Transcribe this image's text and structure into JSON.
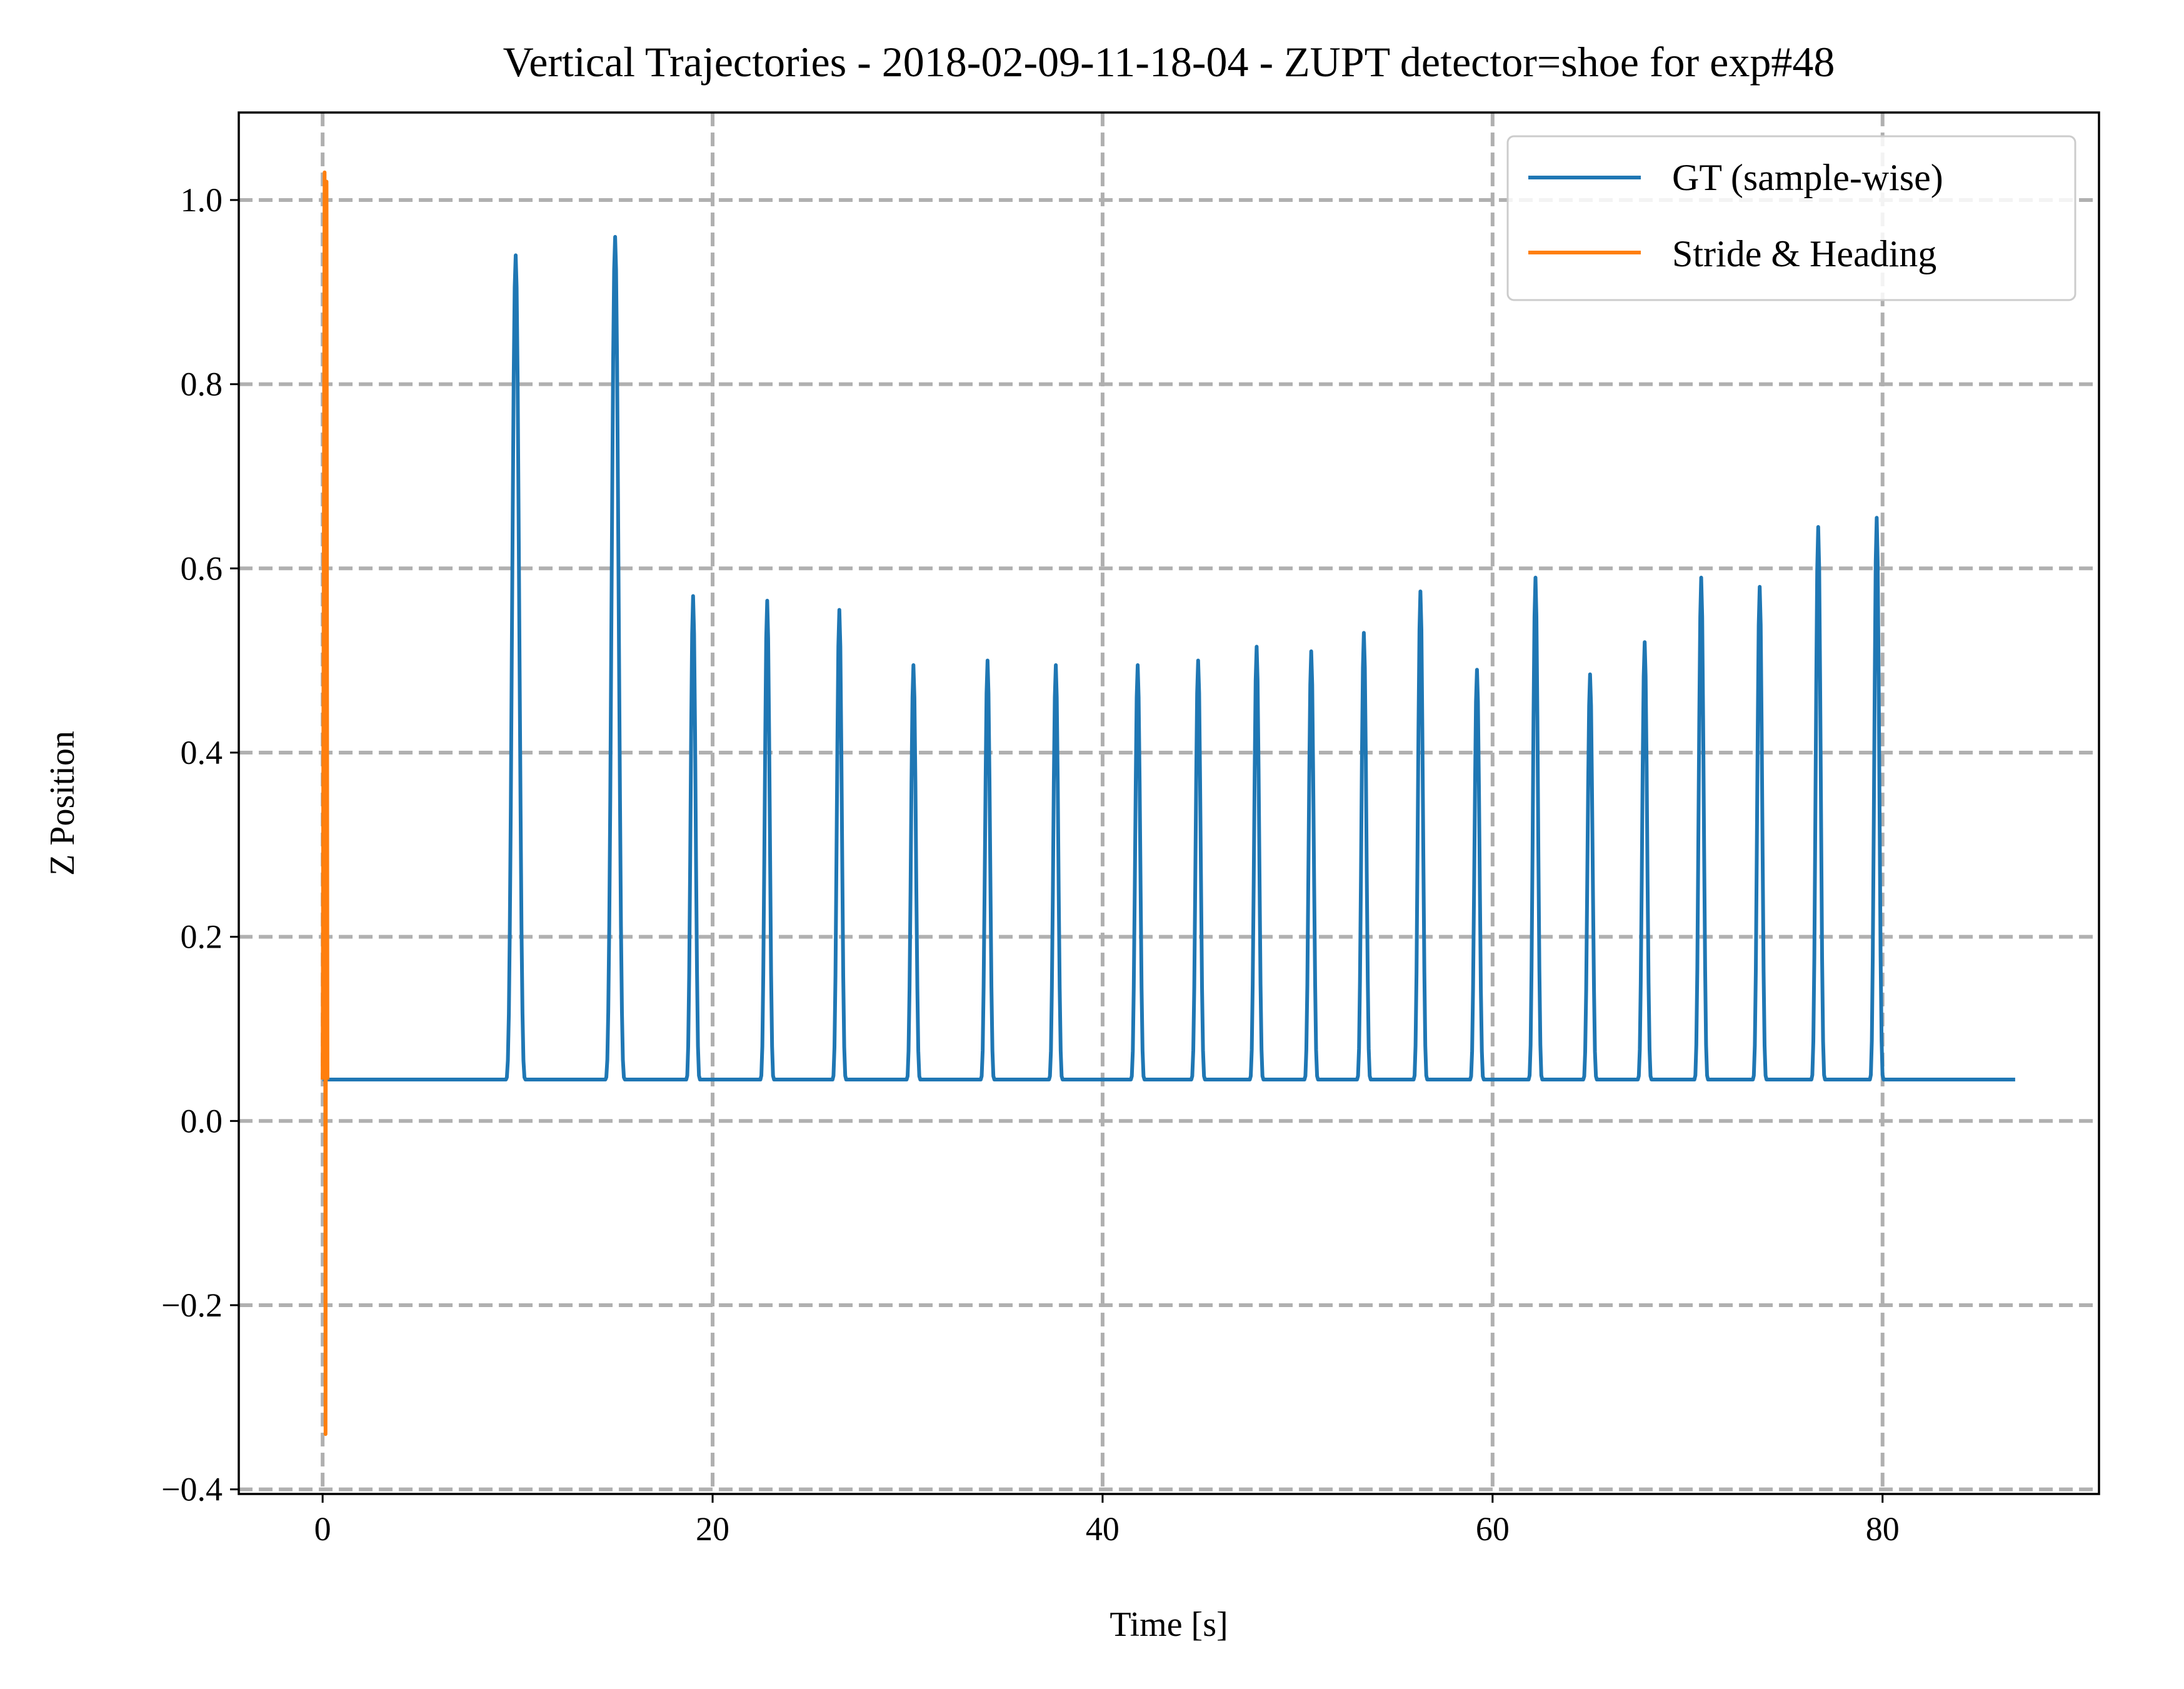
{
  "chart_data": {
    "type": "line",
    "title": "Vertical Trajectories - 2018-02-09-11-18-04 - ZUPT detector=shoe for exp#48",
    "xlabel": "Time [s]",
    "ylabel": "Z Position",
    "xlim": [
      -4.3,
      91.1
    ],
    "ylim": [
      -0.405,
      1.095
    ],
    "x_ticks": [
      0,
      20,
      40,
      60,
      80
    ],
    "x_tick_labels": [
      "0",
      "20",
      "40",
      "60",
      "80"
    ],
    "y_ticks": [
      -0.4,
      -0.2,
      0.0,
      0.2,
      0.4,
      0.6,
      0.8,
      1.0
    ],
    "y_tick_labels": [
      "−0.4",
      "−0.2",
      "0.0",
      "0.2",
      "0.4",
      "0.6",
      "0.8",
      "1.0"
    ],
    "grid": true,
    "legend_position": "top-right",
    "series": [
      {
        "name": "GT (sample-wise)",
        "color": "#1f77b4",
        "baseline": 0.045,
        "x_start": 0.0,
        "x_end": 86.8,
        "peaks": [
          {
            "t": 9.9,
            "z": 0.94,
            "w": 1.0
          },
          {
            "t": 15.0,
            "z": 0.96,
            "w": 1.0
          },
          {
            "t": 19.0,
            "z": 0.57,
            "w": 0.7
          },
          {
            "t": 22.8,
            "z": 0.565,
            "w": 0.7
          },
          {
            "t": 26.5,
            "z": 0.555,
            "w": 0.7
          },
          {
            "t": 30.3,
            "z": 0.495,
            "w": 0.7
          },
          {
            "t": 34.1,
            "z": 0.5,
            "w": 0.7
          },
          {
            "t": 37.6,
            "z": 0.495,
            "w": 0.7
          },
          {
            "t": 41.8,
            "z": 0.495,
            "w": 0.7
          },
          {
            "t": 44.9,
            "z": 0.5,
            "w": 0.7
          },
          {
            "t": 47.9,
            "z": 0.515,
            "w": 0.7
          },
          {
            "t": 50.7,
            "z": 0.51,
            "w": 0.7
          },
          {
            "t": 53.4,
            "z": 0.53,
            "w": 0.7
          },
          {
            "t": 56.3,
            "z": 0.575,
            "w": 0.7
          },
          {
            "t": 59.2,
            "z": 0.49,
            "w": 0.7
          },
          {
            "t": 62.2,
            "z": 0.59,
            "w": 0.7
          },
          {
            "t": 65.0,
            "z": 0.485,
            "w": 0.7
          },
          {
            "t": 67.8,
            "z": 0.52,
            "w": 0.7
          },
          {
            "t": 70.7,
            "z": 0.59,
            "w": 0.7
          },
          {
            "t": 73.7,
            "z": 0.58,
            "w": 0.7
          },
          {
            "t": 76.7,
            "z": 0.645,
            "w": 0.7
          },
          {
            "t": 79.7,
            "z": 0.655,
            "w": 0.7
          }
        ]
      },
      {
        "name": "Stride & Heading",
        "color": "#ff7f0e",
        "x": [
          0.0,
          0.1,
          0.15,
          0.2,
          0.25
        ],
        "y": [
          0.045,
          1.03,
          -0.34,
          1.02,
          0.045
        ]
      }
    ]
  }
}
